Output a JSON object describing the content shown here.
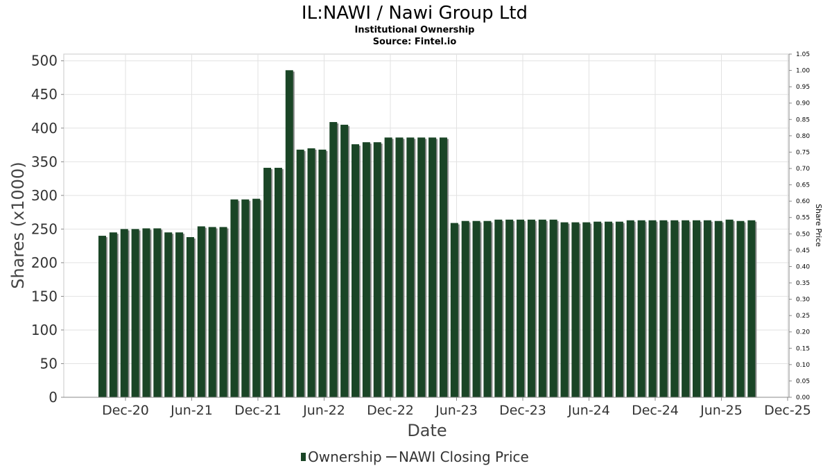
{
  "chart_data": {
    "type": "bar",
    "title": "IL:NAWI / Nawi Group Ltd",
    "subtitle": "Institutional Ownership",
    "source": "Source: Fintel.io",
    "xlabel": "Date",
    "ylabel": "Shares (x1000)",
    "y2label": "Share Price",
    "ylim": [
      0,
      510
    ],
    "y2lim": [
      0,
      1.05
    ],
    "yticks": [
      "0",
      "50",
      "100",
      "150",
      "200",
      "250",
      "300",
      "350",
      "400",
      "450",
      "500"
    ],
    "y2ticks": [
      "0.00",
      "0.05",
      "0.10",
      "0.15",
      "0.20",
      "0.25",
      "0.30",
      "0.35",
      "0.40",
      "0.45",
      "0.50",
      "0.55",
      "0.60",
      "0.65",
      "0.70",
      "0.75",
      "0.80",
      "0.85",
      "0.90",
      "0.95",
      "1.00",
      "1.05"
    ],
    "xticks": [
      "Dec-20",
      "Jun-21",
      "Dec-21",
      "Jun-22",
      "Dec-22",
      "Jun-23",
      "Dec-23",
      "Jun-24",
      "Dec-24",
      "Jun-25",
      "Dec-25"
    ],
    "grid": true,
    "legend_position": "bottom-center",
    "series": [
      {
        "name": "Ownership",
        "color": "#1a4526",
        "values": [
          240,
          245,
          250,
          250,
          251,
          251,
          245,
          245,
          238,
          254,
          253,
          253,
          294,
          294,
          295,
          341,
          341,
          486,
          368,
          370,
          368,
          409,
          405,
          376,
          379,
          379,
          386,
          386,
          386,
          386,
          386,
          386,
          259,
          262,
          262,
          262,
          264,
          264,
          264,
          264,
          264,
          264,
          260,
          260,
          260,
          261,
          261,
          261,
          263,
          263,
          263,
          263,
          263,
          263,
          263,
          263,
          262,
          264,
          262,
          263
        ]
      },
      {
        "name": "NAWI Closing Price",
        "color": "#444444",
        "values": []
      }
    ]
  }
}
